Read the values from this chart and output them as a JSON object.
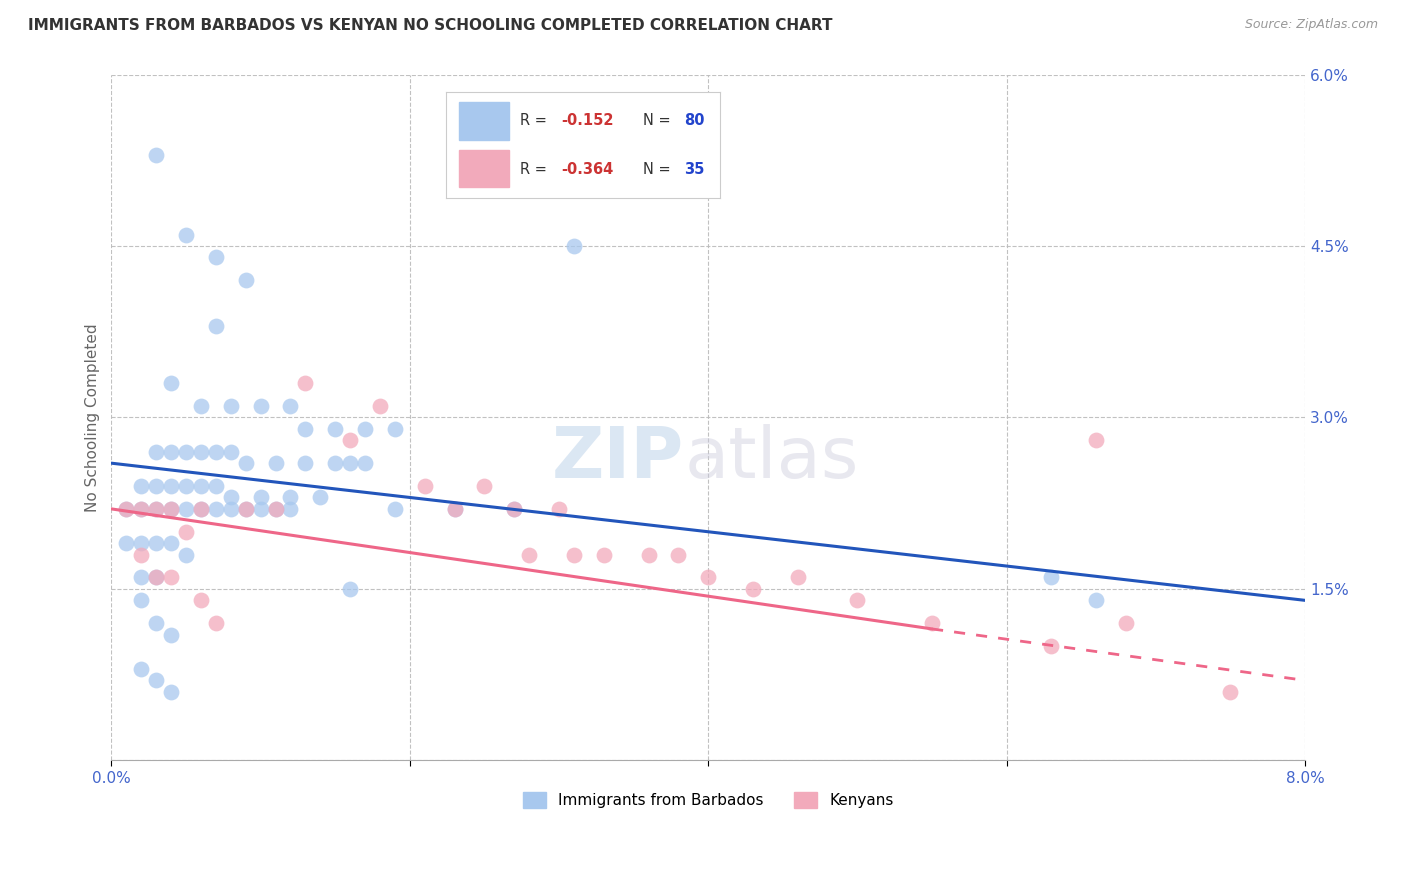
{
  "title": "IMMIGRANTS FROM BARBADOS VS KENYAN NO SCHOOLING COMPLETED CORRELATION CHART",
  "source": "Source: ZipAtlas.com",
  "ylabel": "No Schooling Completed",
  "xlim": [
    0.0,
    0.08
  ],
  "ylim": [
    0.0,
    0.06
  ],
  "xticks": [
    0.0,
    0.02,
    0.04,
    0.06,
    0.08
  ],
  "xtick_labels": [
    "0.0%",
    "",
    "",
    "",
    "8.0%"
  ],
  "yticks": [
    0.0,
    0.015,
    0.03,
    0.045,
    0.06
  ],
  "ytick_labels": [
    "",
    "1.5%",
    "3.0%",
    "4.5%",
    "6.0%"
  ],
  "legend_blue_label": "Immigrants from Barbados",
  "legend_pink_label": "Kenyans",
  "blue_color": "#A8C8EE",
  "pink_color": "#F2AABB",
  "blue_line_color": "#2255BB",
  "pink_line_color": "#EE6688",
  "background_color": "#FFFFFF",
  "grid_color": "#BBBBBB",
  "blue_scatter_x": [
    0.003,
    0.007,
    0.005,
    0.009,
    0.007,
    0.031,
    0.004,
    0.006,
    0.008,
    0.01,
    0.012,
    0.013,
    0.015,
    0.017,
    0.019,
    0.003,
    0.004,
    0.005,
    0.006,
    0.007,
    0.008,
    0.009,
    0.011,
    0.013,
    0.015,
    0.016,
    0.017,
    0.002,
    0.003,
    0.004,
    0.005,
    0.006,
    0.007,
    0.008,
    0.01,
    0.012,
    0.014,
    0.001,
    0.002,
    0.003,
    0.004,
    0.005,
    0.006,
    0.007,
    0.008,
    0.009,
    0.01,
    0.011,
    0.012,
    0.001,
    0.002,
    0.003,
    0.004,
    0.005,
    0.002,
    0.003,
    0.002,
    0.016,
    0.003,
    0.004,
    0.002,
    0.003,
    0.004,
    0.063,
    0.066,
    0.019,
    0.023,
    0.027
  ],
  "blue_scatter_y": [
    0.053,
    0.044,
    0.046,
    0.042,
    0.038,
    0.045,
    0.033,
    0.031,
    0.031,
    0.031,
    0.031,
    0.029,
    0.029,
    0.029,
    0.029,
    0.027,
    0.027,
    0.027,
    0.027,
    0.027,
    0.027,
    0.026,
    0.026,
    0.026,
    0.026,
    0.026,
    0.026,
    0.024,
    0.024,
    0.024,
    0.024,
    0.024,
    0.024,
    0.023,
    0.023,
    0.023,
    0.023,
    0.022,
    0.022,
    0.022,
    0.022,
    0.022,
    0.022,
    0.022,
    0.022,
    0.022,
    0.022,
    0.022,
    0.022,
    0.019,
    0.019,
    0.019,
    0.019,
    0.018,
    0.016,
    0.016,
    0.014,
    0.015,
    0.012,
    0.011,
    0.008,
    0.007,
    0.006,
    0.016,
    0.014,
    0.022,
    0.022,
    0.022
  ],
  "pink_scatter_x": [
    0.001,
    0.002,
    0.003,
    0.004,
    0.005,
    0.006,
    0.009,
    0.011,
    0.013,
    0.016,
    0.018,
    0.021,
    0.023,
    0.025,
    0.027,
    0.028,
    0.03,
    0.031,
    0.033,
    0.036,
    0.038,
    0.04,
    0.043,
    0.046,
    0.05,
    0.055,
    0.063,
    0.066,
    0.068,
    0.075,
    0.002,
    0.003,
    0.004,
    0.006,
    0.007
  ],
  "pink_scatter_y": [
    0.022,
    0.022,
    0.022,
    0.022,
    0.02,
    0.022,
    0.022,
    0.022,
    0.033,
    0.028,
    0.031,
    0.024,
    0.022,
    0.024,
    0.022,
    0.018,
    0.022,
    0.018,
    0.018,
    0.018,
    0.018,
    0.016,
    0.015,
    0.016,
    0.014,
    0.012,
    0.01,
    0.028,
    0.012,
    0.006,
    0.018,
    0.016,
    0.016,
    0.014,
    0.012
  ]
}
